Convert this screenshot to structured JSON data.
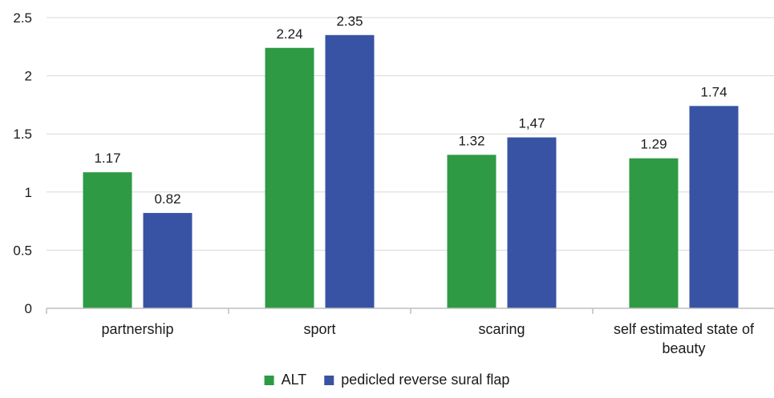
{
  "chart_data": {
    "type": "bar",
    "categories": [
      [
        "partnership"
      ],
      [
        "sport"
      ],
      [
        "scaring"
      ],
      [
        "self estimated state of",
        "beauty"
      ]
    ],
    "series": [
      {
        "name": "ALT",
        "color": "#2e9a44",
        "values": [
          1.17,
          2.24,
          1.32,
          1.29
        ],
        "labels": [
          "1.17",
          "2.24",
          "1.32",
          "1.29"
        ]
      },
      {
        "name": "pedicled reverse sural flap",
        "color": "#3853a4",
        "values": [
          0.82,
          2.35,
          1.47,
          1.74
        ],
        "labels": [
          "0.82",
          "2.35",
          "1,47",
          "1.74"
        ]
      }
    ],
    "ylim": [
      0,
      2.5
    ],
    "yticks": [
      "0",
      "0.5",
      "1",
      "1.5",
      "2",
      "2.5"
    ],
    "ytick_values": [
      0,
      0.5,
      1,
      1.5,
      2,
      2.5
    ],
    "grid": true,
    "gridColor": "#d9d9d9",
    "axisColor": "#bfbfbf",
    "legend_position": "bottom",
    "title": "",
    "xlabel": "",
    "ylabel": ""
  }
}
